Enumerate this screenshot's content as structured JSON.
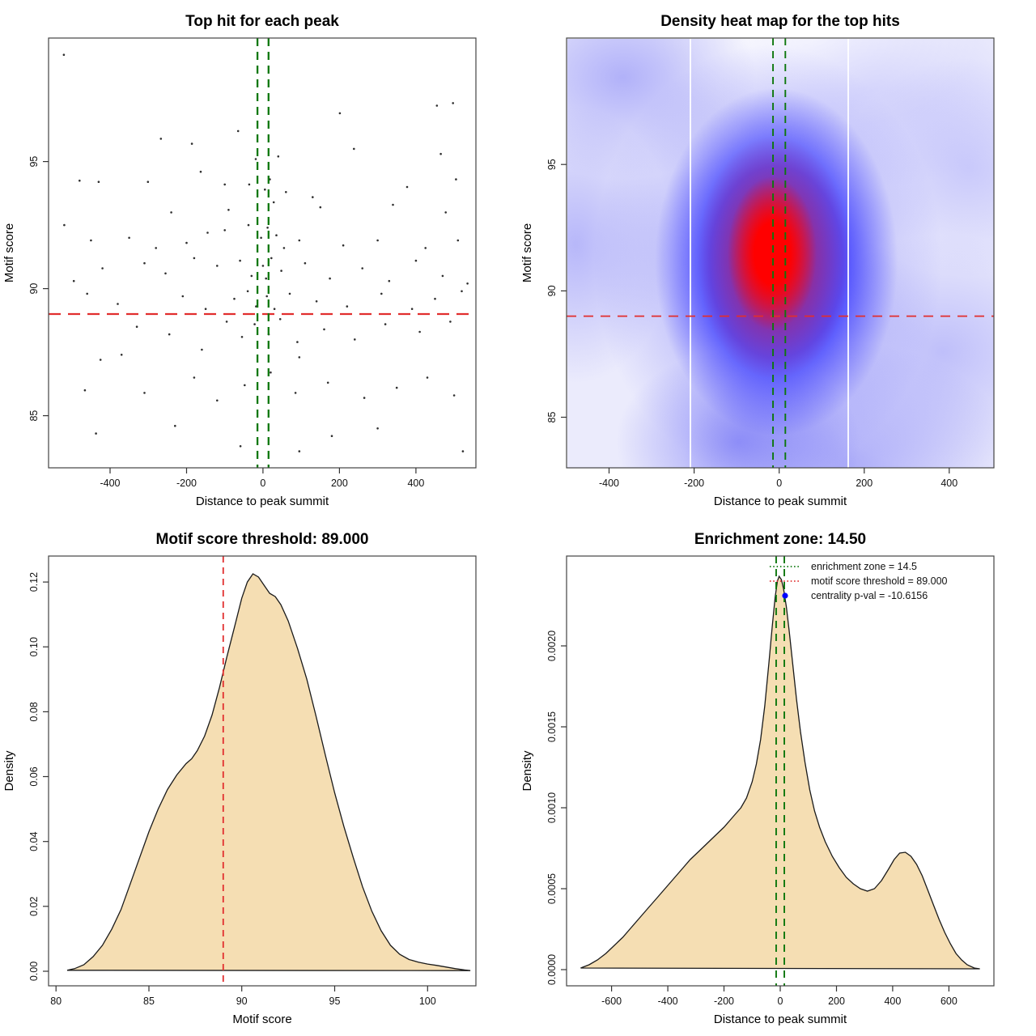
{
  "figure": {
    "kind": "R motif enrichment summary (2x2 panels)",
    "background": "#ffffff"
  },
  "colors": {
    "green_line": "#0d770d",
    "red_line": "#e12e2e",
    "area_fill": "#F5DEB3",
    "curve_stroke": "#1a1a1a",
    "point": "#2f2f2f",
    "box_stroke": "#444444",
    "legend_dot_blue": "#0000ff",
    "heat_core_red": "#ff0000",
    "heat_blue": "#2828ff"
  },
  "chart_data": [
    {
      "id": "top-hits-scatter",
      "type": "scatter",
      "title": "Top hit for each peak",
      "xlabel": "Distance to peak summit",
      "ylabel": "Motif score",
      "xlim": [
        -561,
        557
      ],
      "ylim": [
        82.95,
        99.86
      ],
      "xticks": [
        -400,
        -200,
        0,
        200,
        400
      ],
      "xtick_labels": [
        "-400",
        "-200",
        "0",
        "200",
        "400"
      ],
      "yticks": [
        85,
        90,
        95
      ],
      "ytick_labels": [
        "85",
        "90",
        "95"
      ],
      "grid": false,
      "lines": [
        {
          "axis": "y",
          "at": 89,
          "color": "#e12e2e",
          "width": 2.3,
          "dash": "15,9",
          "name": "motif-score-threshold-line"
        },
        {
          "axis": "x",
          "at": -14.5,
          "color": "#0d770d",
          "width": 2.3,
          "dash": "10,7",
          "name": "enrichment-zone-left-line"
        },
        {
          "axis": "x",
          "at": 14.5,
          "color": "#0d770d",
          "width": 2.3,
          "dash": "10,7",
          "name": "enrichment-zone-right-line"
        }
      ],
      "point_radius": 1.3,
      "points": [
        [
          -521,
          99.2
        ],
        [
          201,
          96.9
        ],
        [
          455,
          97.2
        ],
        [
          497,
          97.3
        ],
        [
          -267,
          95.9
        ],
        [
          -186,
          95.7
        ],
        [
          -19,
          95.1
        ],
        [
          40,
          95.2
        ],
        [
          238,
          95.5
        ],
        [
          465,
          95.3
        ],
        [
          -65,
          96.2
        ],
        [
          -163,
          94.6
        ],
        [
          -301,
          94.2
        ],
        [
          -100,
          94.1
        ],
        [
          -36,
          94.1
        ],
        [
          18,
          94.3
        ],
        [
          5,
          93.9
        ],
        [
          60,
          93.8
        ],
        [
          130,
          93.6
        ],
        [
          377,
          94.0
        ],
        [
          505,
          94.3
        ],
        [
          -480,
          94.25
        ],
        [
          -430,
          94.2
        ],
        [
          340,
          93.3
        ],
        [
          150,
          93.2
        ],
        [
          -90,
          93.1
        ],
        [
          -240,
          93.0
        ],
        [
          28,
          93.4
        ],
        [
          478,
          93.0
        ],
        [
          -38,
          92.5
        ],
        [
          -100,
          92.3
        ],
        [
          -520,
          92.5
        ],
        [
          -450,
          91.9
        ],
        [
          -350,
          92.0
        ],
        [
          -145,
          92.2
        ],
        [
          12,
          92.4
        ],
        [
          -5,
          92.0
        ],
        [
          35,
          92.1
        ],
        [
          95,
          91.9
        ],
        [
          210,
          91.7
        ],
        [
          300,
          91.9
        ],
        [
          425,
          91.6
        ],
        [
          510,
          91.9
        ],
        [
          -280,
          91.6
        ],
        [
          -200,
          91.8
        ],
        [
          55,
          91.6
        ],
        [
          -420,
          90.8
        ],
        [
          -310,
          91.0
        ],
        [
          -255,
          90.6
        ],
        [
          -180,
          91.2
        ],
        [
          -120,
          90.9
        ],
        [
          -60,
          91.1
        ],
        [
          -30,
          90.5
        ],
        [
          0,
          90.9
        ],
        [
          22,
          91.2
        ],
        [
          48,
          90.7
        ],
        [
          110,
          91.0
        ],
        [
          175,
          90.4
        ],
        [
          260,
          90.8
        ],
        [
          330,
          90.3
        ],
        [
          400,
          91.1
        ],
        [
          470,
          90.5
        ],
        [
          535,
          90.2
        ],
        [
          -495,
          90.3
        ],
        [
          8,
          90.4
        ],
        [
          -460,
          89.8
        ],
        [
          -380,
          89.4
        ],
        [
          -210,
          89.7
        ],
        [
          -150,
          89.2
        ],
        [
          -75,
          89.6
        ],
        [
          -40,
          89.9
        ],
        [
          -18,
          89.3
        ],
        [
          10,
          89.7
        ],
        [
          30,
          89.2
        ],
        [
          70,
          89.8
        ],
        [
          140,
          89.5
        ],
        [
          220,
          89.3
        ],
        [
          310,
          89.8
        ],
        [
          390,
          89.2
        ],
        [
          450,
          89.6
        ],
        [
          520,
          89.9
        ],
        [
          -425,
          87.2
        ],
        [
          -330,
          88.5
        ],
        [
          -245,
          88.2
        ],
        [
          -160,
          87.6
        ],
        [
          -95,
          88.7
        ],
        [
          -55,
          88.1
        ],
        [
          -22,
          88.6
        ],
        [
          15,
          88.2
        ],
        [
          45,
          88.8
        ],
        [
          90,
          87.9
        ],
        [
          160,
          88.4
        ],
        [
          240,
          88.0
        ],
        [
          320,
          88.6
        ],
        [
          410,
          88.3
        ],
        [
          490,
          88.7
        ],
        [
          95,
          87.3
        ],
        [
          -370,
          87.4
        ],
        [
          -466,
          86.0
        ],
        [
          -310,
          85.9
        ],
        [
          -180,
          86.5
        ],
        [
          -120,
          85.6
        ],
        [
          -48,
          86.2
        ],
        [
          20,
          86.7
        ],
        [
          85,
          85.9
        ],
        [
          170,
          86.3
        ],
        [
          265,
          85.7
        ],
        [
          350,
          86.1
        ],
        [
          430,
          86.5
        ],
        [
          500,
          85.8
        ],
        [
          -437,
          84.3
        ],
        [
          -59,
          83.8
        ],
        [
          95,
          83.6
        ],
        [
          523,
          83.6
        ],
        [
          300,
          84.5
        ],
        [
          -230,
          84.6
        ],
        [
          180,
          84.2
        ]
      ]
    },
    {
      "id": "density-heatmap",
      "type": "heatmap",
      "title": "Density heat map for the top hits",
      "xlabel": "Distance to peak summit",
      "ylabel": "Motif score",
      "xlim": [
        -500,
        505
      ],
      "ylim": [
        83.0,
        100.0
      ],
      "xticks": [
        -400,
        -200,
        0,
        200,
        400
      ],
      "xtick_labels": [
        "-400",
        "-200",
        "0",
        "200",
        "400"
      ],
      "yticks": [
        85,
        90,
        95
      ],
      "ytick_labels": [
        "85",
        "90",
        "95"
      ],
      "hot_spot": {
        "x": -15,
        "y": 91.5,
        "note": "red density core"
      },
      "white_gridlines_x": [
        -212,
        160
      ],
      "lines": [
        {
          "axis": "y",
          "at": 89,
          "color": "#e12e2e",
          "width": 1.7,
          "dash": "12,9",
          "name": "motif-score-threshold-line"
        },
        {
          "axis": "x",
          "at": -14.5,
          "color": "#0d770d",
          "width": 1.9,
          "dash": "9,7",
          "name": "enrichment-zone-left-line"
        },
        {
          "axis": "x",
          "at": 14.5,
          "color": "#0d770d",
          "width": 1.9,
          "dash": "9,7",
          "name": "enrichment-zone-right-line"
        }
      ]
    },
    {
      "id": "motif-score-density",
      "type": "area",
      "title": "Motif score threshold: 89.000",
      "xlabel": "Motif score",
      "ylabel": "Density",
      "xlim": [
        79.6,
        102.6
      ],
      "ylim": [
        -0.0045,
        0.128
      ],
      "xticks": [
        80,
        85,
        90,
        95,
        100
      ],
      "xtick_labels": [
        "80",
        "85",
        "90",
        "95",
        "100"
      ],
      "yticks": [
        0.0,
        0.02,
        0.04,
        0.06,
        0.08,
        0.1,
        0.12
      ],
      "ytick_labels": [
        "0.00",
        "0.02",
        "0.04",
        "0.06",
        "0.08",
        "0.10",
        "0.12"
      ],
      "lines": [
        {
          "axis": "x",
          "at": 89,
          "color": "#e12e2e",
          "width": 1.8,
          "dash": "8,6",
          "name": "motif-score-threshold-line"
        }
      ],
      "curve": {
        "x": [
          80.6,
          81,
          81.5,
          82,
          82.5,
          83,
          83.5,
          84,
          84.5,
          85,
          85.5,
          86,
          86.5,
          87,
          87.3,
          87.6,
          88,
          88.4,
          88.8,
          89.2,
          89.6,
          90,
          90.3,
          90.6,
          90.9,
          91.2,
          91.5,
          91.8,
          92.1,
          92.5,
          93,
          93.5,
          94,
          94.5,
          95,
          95.5,
          96,
          96.5,
          97,
          97.5,
          98,
          98.5,
          99,
          99.5,
          100,
          100.5,
          101,
          101.5,
          102,
          102.3
        ],
        "y": [
          0.0003,
          0.0008,
          0.002,
          0.0045,
          0.008,
          0.013,
          0.019,
          0.027,
          0.035,
          0.043,
          0.05,
          0.056,
          0.0605,
          0.064,
          0.0655,
          0.068,
          0.0725,
          0.079,
          0.0875,
          0.097,
          0.106,
          0.115,
          0.12,
          0.1225,
          0.1215,
          0.119,
          0.1165,
          0.1155,
          0.113,
          0.108,
          0.0995,
          0.09,
          0.0785,
          0.0665,
          0.055,
          0.0445,
          0.035,
          0.026,
          0.0185,
          0.0125,
          0.008,
          0.0052,
          0.0036,
          0.0028,
          0.0022,
          0.0018,
          0.0013,
          0.0008,
          0.0004,
          0.0002
        ]
      }
    },
    {
      "id": "summit-distance-density",
      "type": "area",
      "title": "Enrichment zone: 14.50",
      "xlabel": "Distance to peak summit",
      "ylabel": "Density",
      "xlim": [
        -760,
        760
      ],
      "ylim": [
        -0.0001,
        0.002555
      ],
      "xticks": [
        -600,
        -400,
        -200,
        0,
        200,
        400,
        600
      ],
      "xtick_labels": [
        "-600",
        "-400",
        "-200",
        "0",
        "200",
        "400",
        "600"
      ],
      "yticks": [
        0.0,
        0.0005,
        0.001,
        0.0015,
        0.002
      ],
      "ytick_labels": [
        "0.0000",
        "0.0005",
        "0.0010",
        "0.0015",
        "0.0020"
      ],
      "lines": [
        {
          "axis": "x",
          "at": -14.5,
          "color": "#0d770d",
          "width": 1.9,
          "dash": "9,7",
          "name": "enrichment-zone-left-line"
        },
        {
          "axis": "x",
          "at": 14.5,
          "color": "#0d770d",
          "width": 1.9,
          "dash": "9,7",
          "name": "enrichment-zone-right-line"
        }
      ],
      "curve": {
        "x": [
          -710,
          -680,
          -650,
          -620,
          -590,
          -560,
          -530,
          -500,
          -470,
          -440,
          -410,
          -380,
          -350,
          -320,
          -290,
          -260,
          -230,
          -200,
          -180,
          -160,
          -140,
          -120,
          -100,
          -85,
          -70,
          -55,
          -40,
          -28,
          -18,
          -10,
          -4,
          4,
          12,
          22,
          32,
          45,
          58,
          72,
          88,
          105,
          122,
          140,
          160,
          185,
          210,
          235,
          260,
          285,
          310,
          335,
          360,
          385,
          405,
          425,
          445,
          465,
          485,
          505,
          525,
          545,
          565,
          585,
          605,
          625,
          645,
          665,
          690,
          710
        ],
        "y": [
          1e-05,
          3e-05,
          6e-05,
          0.0001,
          0.00015,
          0.0002,
          0.00026,
          0.00032,
          0.00038,
          0.00044,
          0.0005,
          0.00056,
          0.00062,
          0.00068,
          0.00073,
          0.00078,
          0.00083,
          0.00088,
          0.00092,
          0.00096,
          0.001,
          0.00106,
          0.00116,
          0.00127,
          0.00142,
          0.00163,
          0.0019,
          0.00213,
          0.0023,
          0.0024,
          0.00243,
          0.00241,
          0.00235,
          0.00224,
          0.00209,
          0.00188,
          0.00167,
          0.00147,
          0.00128,
          0.00111,
          0.00098,
          0.00088,
          0.00079,
          0.0007,
          0.00063,
          0.00057,
          0.00053,
          0.0005,
          0.000485,
          0.0005,
          0.00055,
          0.00062,
          0.00068,
          0.00072,
          0.000725,
          0.0007,
          0.00065,
          0.00058,
          0.00049,
          0.0004,
          0.00031,
          0.00023,
          0.00016,
          0.0001,
          6e-05,
          3e-05,
          1e-05,
          5e-06
        ]
      },
      "legend": {
        "entries": [
          {
            "swatch": "green-dotted-line",
            "color": "#0d770d",
            "label": "enrichment zone = 14.5"
          },
          {
            "swatch": "red-dotted-line",
            "color": "#e12e2e",
            "label": "motif score threshold = 89.000"
          },
          {
            "swatch": "blue-dot",
            "color": "#0000ff",
            "label": "centrality p-val = -10.6156"
          }
        ]
      }
    }
  ]
}
